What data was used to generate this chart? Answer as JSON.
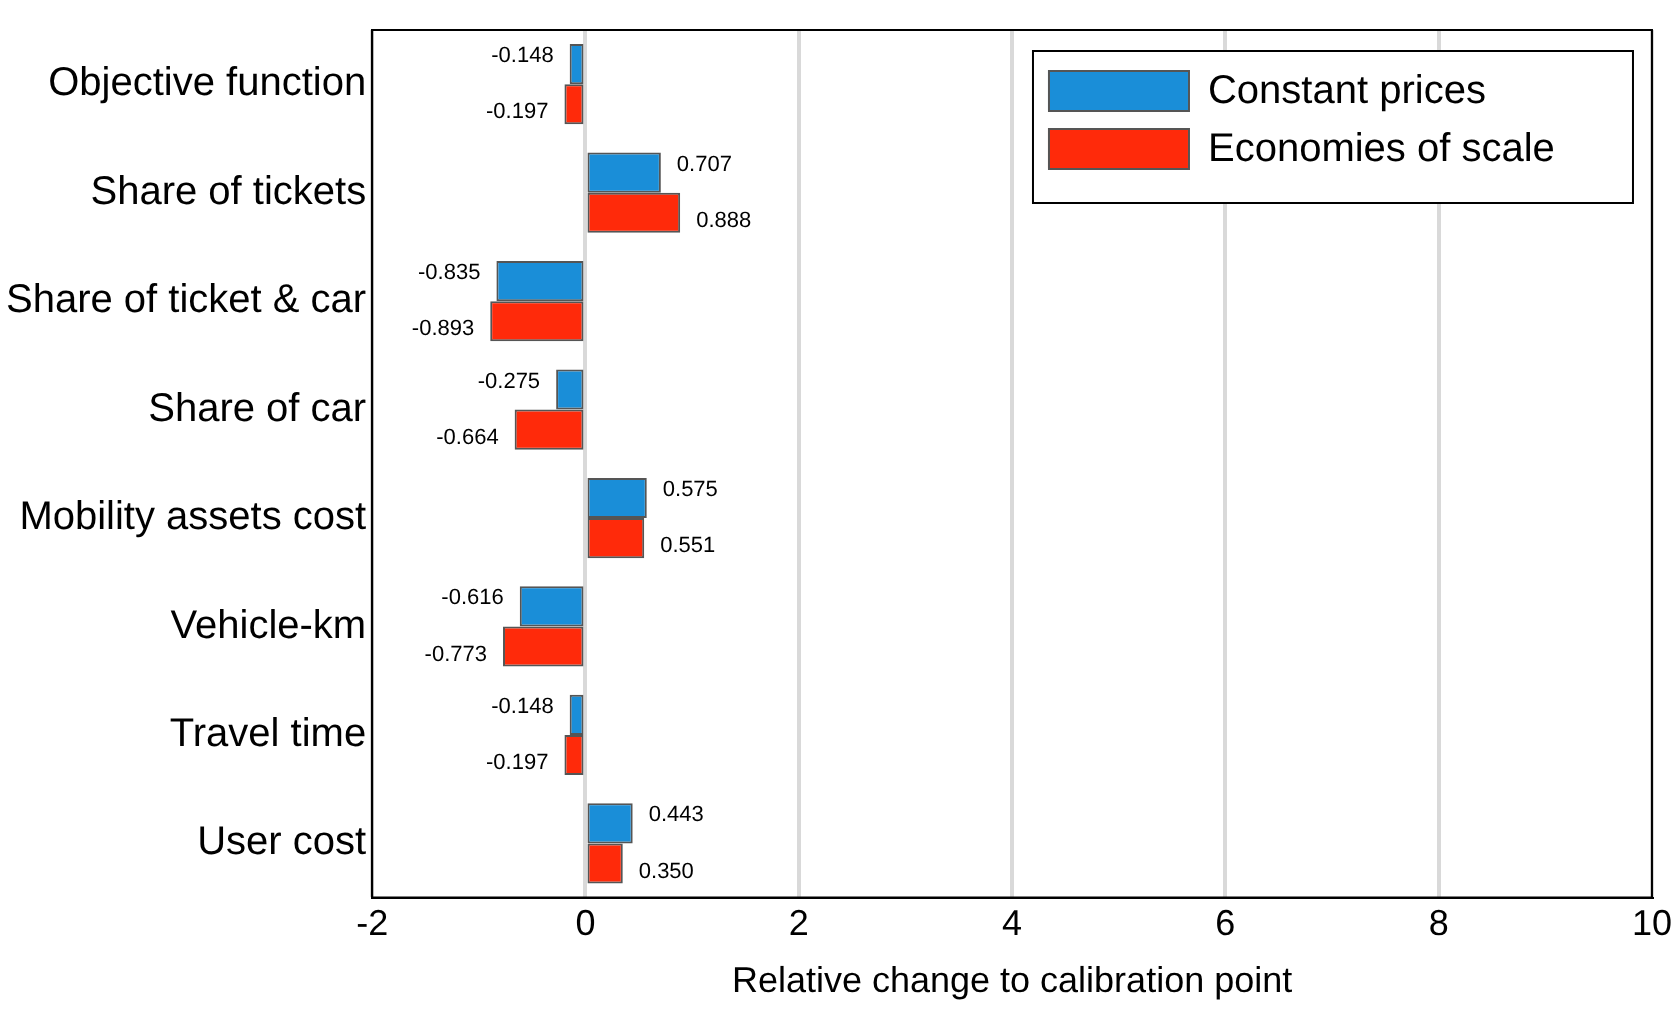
{
  "chart_data": {
    "type": "bar",
    "orientation": "horizontal",
    "xlabel": "Relative change to calibration point",
    "categories": [
      "Objective function",
      "Share of tickets",
      "Share of ticket & car",
      "Share of car",
      "Mobility assets cost",
      "Vehicle-km",
      "Travel time",
      "User cost"
    ],
    "series": [
      {
        "name": "Constant prices",
        "color": "#1a8ed8",
        "values": [
          -0.148,
          0.707,
          -0.835,
          -0.275,
          0.575,
          -0.616,
          -0.148,
          0.443
        ],
        "value_labels": [
          "-0.148",
          "0.707",
          "-0.835",
          "-0.275",
          "0.575",
          "-0.616",
          "-0.148",
          "0.443"
        ]
      },
      {
        "name": "Economies of scale",
        "color": "#ff2a0a",
        "values": [
          -0.197,
          0.888,
          -0.893,
          -0.664,
          0.551,
          -0.773,
          -0.197,
          0.35
        ],
        "value_labels": [
          "-0.197",
          "0.888",
          "-0.893",
          "-0.664",
          "0.551",
          "-0.773",
          "-0.197",
          "0.350"
        ]
      }
    ],
    "xlim": [
      -2,
      10
    ],
    "xticks": [
      -2,
      0,
      2,
      4,
      6,
      8,
      10
    ],
    "grid": "x",
    "legend": "top right"
  }
}
